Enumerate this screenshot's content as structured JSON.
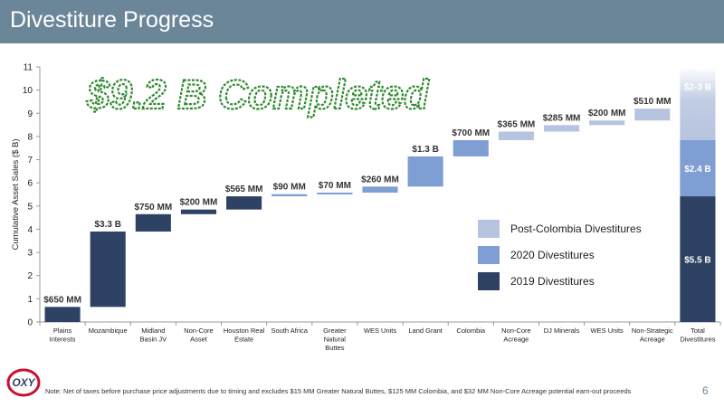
{
  "slide": {
    "title": "Divestiture Progress",
    "footnote": "Note: Net of taxes before purchase price adjustments due to timing and excludes $15 MM Greater Natural Buttes, $125 MM Colombia, and $32 MM Non-Core Acreage potential earn-out proceeds",
    "page_number": "6",
    "logo_text": "OXY"
  },
  "chart_data": {
    "type": "bar",
    "subtype": "waterfall",
    "annotation": "$9.2 B Completed",
    "ylabel": "Cumulative Asset Sales ($ B)",
    "xlabel": "",
    "ylim": [
      0,
      11
    ],
    "yticks": [
      0,
      1,
      2,
      3,
      4,
      5,
      6,
      7,
      8,
      9,
      10,
      11
    ],
    "grid": false,
    "legend_position": "right",
    "colors": {
      "2019": "#2e4263",
      "2020": "#7f9ed3",
      "post": "#b6c4df"
    },
    "legend": [
      {
        "key": "post",
        "label": "Post-Colombia Divestitures"
      },
      {
        "key": "2020",
        "label": "2020 Divestitures"
      },
      {
        "key": "2019",
        "label": "2019 Divestitures"
      }
    ],
    "steps": [
      {
        "category": "Plains Interests",
        "start": 0.0,
        "end": 0.65,
        "group": "2019",
        "label": "$650 MM"
      },
      {
        "category": "Mozambique",
        "start": 0.65,
        "end": 3.9,
        "group": "2019",
        "label": "$3.3 B"
      },
      {
        "category": "Midland Basin JV",
        "start": 3.9,
        "end": 4.65,
        "group": "2019",
        "label": "$750 MM"
      },
      {
        "category": "Non-Core Asset",
        "start": 4.65,
        "end": 4.85,
        "group": "2019",
        "label": "$200 MM"
      },
      {
        "category": "Houston Real Estate",
        "start": 4.85,
        "end": 5.42,
        "group": "2019",
        "label": "$565 MM"
      },
      {
        "category": "South Africa",
        "start": 5.42,
        "end": 5.51,
        "group": "2020",
        "label": "$90 MM"
      },
      {
        "category": "Greater Natural Buttes",
        "start": 5.51,
        "end": 5.58,
        "group": "2020",
        "label": "$70 MM"
      },
      {
        "category": "WES Units",
        "start": 5.58,
        "end": 5.84,
        "group": "2020",
        "label": "$260 MM"
      },
      {
        "category": "Land Grant",
        "start": 5.84,
        "end": 7.14,
        "group": "2020",
        "label": "$1.3 B"
      },
      {
        "category": "Colombia",
        "start": 7.14,
        "end": 7.84,
        "group": "2020",
        "label": "$700 MM"
      },
      {
        "category": "Non-Core Acreage",
        "start": 7.84,
        "end": 8.21,
        "group": "post",
        "label": "$365 MM"
      },
      {
        "category": "DJ Minerals",
        "start": 8.21,
        "end": 8.49,
        "group": "post",
        "label": "$285 MM"
      },
      {
        "category": "WES Units",
        "start": 8.49,
        "end": 8.69,
        "group": "post",
        "label": "$200 MM"
      },
      {
        "category": "Non-Strategic Acreage",
        "start": 8.69,
        "end": 9.2,
        "group": "post",
        "label": "$510 MM"
      }
    ],
    "total": {
      "category": "Total Divestitures",
      "segments": [
        {
          "group": "2019",
          "start": 0.0,
          "end": 5.42,
          "label": "$5.5 B"
        },
        {
          "group": "2020",
          "start": 5.42,
          "end": 7.84,
          "label": "$2.4 B"
        },
        {
          "group": "post",
          "start": 7.84,
          "end": 11.0,
          "label": "$2-3 B",
          "fade": true
        }
      ]
    }
  }
}
